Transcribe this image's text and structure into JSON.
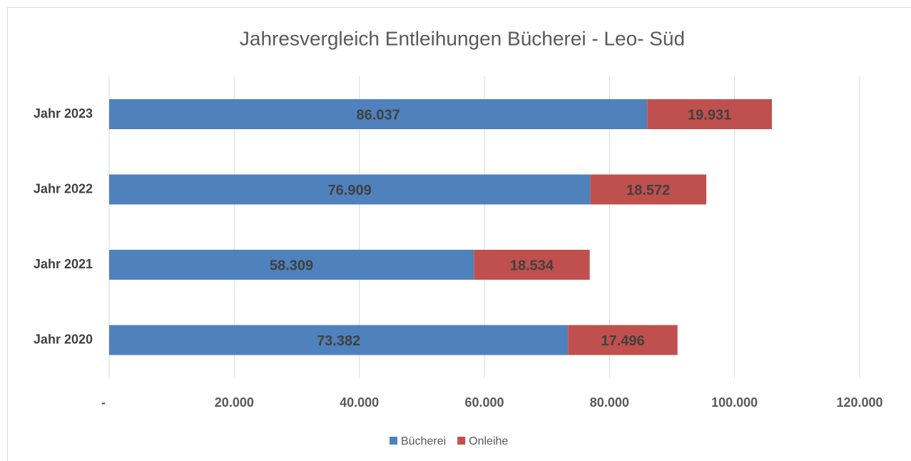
{
  "chart_data": {
    "type": "stacked-horizontal-bar",
    "title": "Jahresvergleich Entleihungen Bücherei - Leo- Süd",
    "categories": [
      "Jahr 2023",
      "Jahr 2022",
      "Jahr 2021",
      "Jahr 2020"
    ],
    "series": [
      {
        "name": "Bücherei",
        "color": "#4f81bd",
        "values": [
          86037,
          76909,
          58309,
          73382
        ],
        "value_labels": [
          "86.037",
          "76.909",
          "58.309",
          "73.382"
        ]
      },
      {
        "name": "Onleihe",
        "color": "#c0504d",
        "values": [
          19931,
          18572,
          18534,
          17496
        ],
        "value_labels": [
          "19.931",
          "18.572",
          "18.534",
          "17.496"
        ]
      }
    ],
    "xlim": [
      0,
      120000
    ],
    "xticks": [
      {
        "value": 0,
        "label": "-"
      },
      {
        "value": 20000,
        "label": "20.000"
      },
      {
        "value": 40000,
        "label": "40.000"
      },
      {
        "value": 60000,
        "label": "60.000"
      },
      {
        "value": 80000,
        "label": "80.000"
      },
      {
        "value": 100000,
        "label": "100.000"
      },
      {
        "value": 120000,
        "label": "120.000"
      }
    ],
    "grid": true,
    "legend": "bottom"
  }
}
